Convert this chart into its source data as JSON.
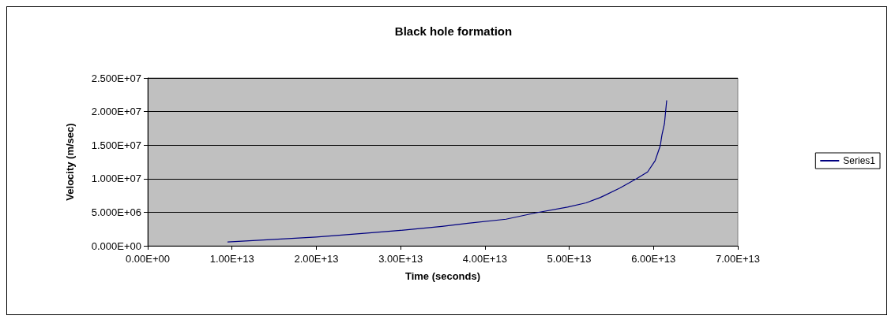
{
  "chart_data": {
    "type": "line",
    "title": "Black hole formation",
    "xlabel": "Time (seconds)",
    "ylabel": "Velocity (m/sec)",
    "xlim": [
      0,
      70000000000000
    ],
    "xticks": [
      {
        "value": 0,
        "label": "0.00E+00"
      },
      {
        "value": 10000000000000,
        "label": "1.00E+13"
      },
      {
        "value": 20000000000000,
        "label": "2.00E+13"
      },
      {
        "value": 30000000000000,
        "label": "3.00E+13"
      },
      {
        "value": 40000000000000,
        "label": "4.00E+13"
      },
      {
        "value": 50000000000000,
        "label": "5.00E+13"
      },
      {
        "value": 60000000000000,
        "label": "6.00E+13"
      },
      {
        "value": 70000000000000,
        "label": "7.00E+13"
      }
    ],
    "ylim": [
      0,
      25000000
    ],
    "yticks": [
      {
        "value": 0,
        "label": "0.000E+00"
      },
      {
        "value": 5000000,
        "label": "5.000E+06"
      },
      {
        "value": 10000000,
        "label": "1.000E+07"
      },
      {
        "value": 15000000,
        "label": "1.500E+07"
      },
      {
        "value": 20000000,
        "label": "2.000E+07"
      },
      {
        "value": 25000000,
        "label": "2.500E+07"
      }
    ],
    "grid": "y",
    "legend": "right",
    "marker": "none",
    "line_style": "solid",
    "series": [
      {
        "name": "Series1",
        "color": "#000080",
        "x": [
          9500000000000,
          15000000000000,
          20000000000000,
          22400000000000,
          26000000000000,
          30000000000000,
          34900000000000,
          38000000000000,
          42500000000000,
          46000000000000,
          49800000000000,
          52000000000000,
          53700000000000,
          56000000000000,
          58000000000000,
          59300000000000,
          60200000000000,
          60800000000000,
          61000000000000,
          61300000000000,
          61560000000000
        ],
        "values": [
          580000,
          950000,
          1300000,
          1530000,
          1900000,
          2300000,
          2900000,
          3350000,
          3960000,
          4900000,
          5760000,
          6400000,
          7200000,
          8600000,
          10000000,
          11000000,
          12700000,
          14900000,
          16500000,
          18200000,
          21600000
        ]
      }
    ]
  }
}
